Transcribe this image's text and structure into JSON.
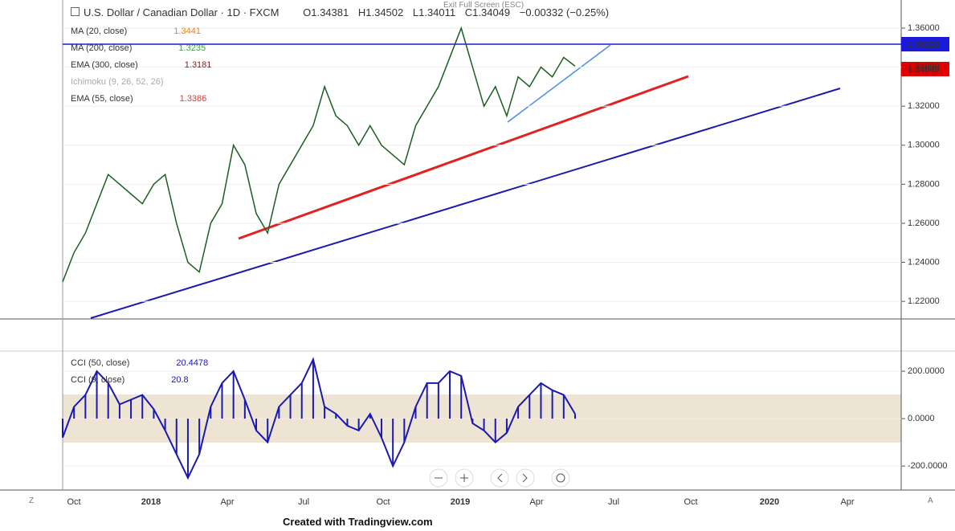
{
  "header": {
    "symbol": "U.S. Dollar / Canadian Dollar",
    "interval": "1D",
    "source": "FXCM",
    "open": "O1.34381",
    "high": "H1.34502",
    "low": "L1.34011",
    "close": "C1.34049",
    "change": "−0.00332 (−0.25%)",
    "exit": "Exit Full Screen (ESC)"
  },
  "indicators": [
    {
      "name": "MA (20, close)",
      "value": "1.3441",
      "color": "#f57c00"
    },
    {
      "name": "MA (200, close)",
      "value": "1.3235",
      "color": "#43a047"
    },
    {
      "name": "EMA (300, close)",
      "value": "1.3181",
      "color": "#8b1a1a"
    },
    {
      "name": "Ichimoku (9, 26, 52, 26)"
    },
    {
      "name": "EMA (55, close)",
      "value": "1.3386",
      "color": "#e53935"
    }
  ],
  "cci_indicators": [
    {
      "name": "CCI (50, close)",
      "value": "20.4478"
    },
    {
      "name": "CCI (9, close)",
      "value": "20.8"
    }
  ],
  "price_tags": [
    {
      "label": "1.35220",
      "color": "#1a1adb"
    },
    {
      "label": "1.34049",
      "color": "#e00000"
    }
  ],
  "time_axis": [
    "Oct",
    "2018",
    "Apr",
    "Jul",
    "Oct",
    "2019",
    "Apr",
    "Jul",
    "Oct",
    "2020",
    "Apr"
  ],
  "footer": "Created with Tradingview.com",
  "chart_data": [
    {
      "type": "line",
      "name": "USD/CAD",
      "color": "#1b5e20",
      "values": [
        1.23,
        1.245,
        1.255,
        1.27,
        1.285,
        1.28,
        1.275,
        1.27,
        1.28,
        1.285,
        1.26,
        1.24,
        1.235,
        1.26,
        1.27,
        1.3,
        1.29,
        1.265,
        1.255,
        1.28,
        1.29,
        1.3,
        1.31,
        1.33,
        1.315,
        1.31,
        1.3,
        1.31,
        1.3,
        1.295,
        1.29,
        1.31,
        1.32,
        1.33,
        1.345,
        1.36,
        1.34,
        1.32,
        1.33,
        1.315,
        1.335,
        1.33,
        1.34,
        1.335,
        1.345,
        1.3405
      ],
      "ylim": [
        1.211,
        1.3744
      ],
      "yticks": [
        {
          "value": 1.36,
          "label": "1.36000"
        },
        {
          "value": 1.34,
          "label": "1.34000"
        },
        {
          "value": 1.32,
          "label": "1.32000"
        },
        {
          "value": 1.3,
          "label": "1.30000"
        },
        {
          "value": 1.28,
          "label": "1.28000"
        },
        {
          "value": 1.26,
          "label": "1.26000"
        },
        {
          "value": 1.24,
          "label": "1.24000"
        },
        {
          "value": 1.22,
          "label": "1.22000"
        }
      ],
      "grid": true
    },
    {
      "type": "area",
      "name": "CCI",
      "color": "#1a1ab0",
      "values": [
        -80,
        50,
        100,
        200,
        150,
        60,
        80,
        100,
        40,
        -50,
        -150,
        -250,
        -150,
        50,
        150,
        200,
        80,
        -50,
        -100,
        50,
        100,
        150,
        250,
        50,
        20,
        -30,
        -50,
        20,
        -80,
        -200,
        -100,
        50,
        150,
        150,
        200,
        180,
        -20,
        -50,
        -100,
        -60,
        50,
        100,
        150,
        120,
        100,
        20
      ],
      "ylim": [
        -291,
        285
      ],
      "yticks": [
        {
          "value": 200,
          "label": "200.0000"
        },
        {
          "value": 0,
          "label": "0.0000"
        },
        {
          "value": -200,
          "label": "-200.0000"
        }
      ],
      "grid": true
    }
  ]
}
